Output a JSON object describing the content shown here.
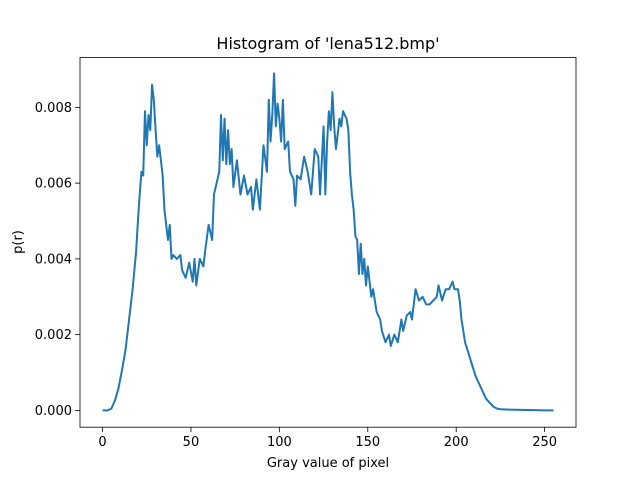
{
  "chart_data": {
    "type": "line",
    "title": "Histogram of 'lena512.bmp'",
    "x_label": "Gray value of pixel",
    "y_label": "p(r)",
    "color": "#1f77b4",
    "x": [
      0,
      3,
      5,
      7,
      9,
      11,
      13,
      15,
      17,
      19,
      20,
      21,
      22,
      23,
      24,
      25,
      26,
      27,
      28,
      29,
      30,
      31,
      32,
      33,
      34,
      35,
      36,
      37,
      38,
      39,
      40,
      42,
      44,
      45,
      47,
      49,
      51,
      52,
      53,
      55,
      57,
      58,
      60,
      62,
      63,
      65,
      66,
      67,
      68,
      69,
      70,
      71,
      72,
      73,
      74,
      76,
      78,
      80,
      82,
      84,
      85,
      87,
      89,
      91,
      93,
      94,
      95,
      96,
      97,
      98,
      99,
      100,
      101,
      102,
      103,
      105,
      106,
      108,
      109,
      110,
      112,
      114,
      116,
      118,
      120,
      122,
      123,
      125,
      126,
      127,
      128,
      129,
      130,
      131,
      132,
      134,
      135,
      136,
      138,
      139,
      140,
      141,
      142,
      143,
      144,
      145,
      146,
      147,
      148,
      149,
      150,
      152,
      153,
      155,
      157,
      158,
      160,
      162,
      163,
      165,
      167,
      169,
      170,
      172,
      174,
      175,
      177,
      179,
      181,
      183,
      185,
      187,
      189,
      190,
      192,
      194,
      196,
      198,
      199,
      201,
      202,
      203,
      205,
      207,
      209,
      211,
      213,
      215,
      217,
      219,
      221,
      223,
      225,
      230,
      240,
      250,
      255
    ],
    "values": [
      0,
      0,
      5e-05,
      0.00026,
      0.00058,
      0.00106,
      0.0016,
      0.0024,
      0.0032,
      0.0042,
      0.005,
      0.0057,
      0.0063,
      0.0062,
      0.0079,
      0.007,
      0.0078,
      0.0074,
      0.0086,
      0.0082,
      0.0074,
      0.0067,
      0.007,
      0.0066,
      0.0062,
      0.0053,
      0.0049,
      0.0045,
      0.0049,
      0.004,
      0.0041,
      0.004,
      0.0041,
      0.0037,
      0.0035,
      0.0039,
      0.0034,
      0.004,
      0.0033,
      0.004,
      0.0038,
      0.0042,
      0.0049,
      0.0045,
      0.0057,
      0.0061,
      0.0063,
      0.0078,
      0.0066,
      0.0077,
      0.0065,
      0.0074,
      0.0065,
      0.0069,
      0.0059,
      0.0066,
      0.0057,
      0.0062,
      0.0057,
      0.0059,
      0.0053,
      0.0061,
      0.0053,
      0.007,
      0.0063,
      0.0082,
      0.0071,
      0.0078,
      0.0089,
      0.0075,
      0.0081,
      0.0077,
      0.0071,
      0.0082,
      0.0069,
      0.0071,
      0.0063,
      0.0061,
      0.0054,
      0.0062,
      0.0061,
      0.0067,
      0.0063,
      0.0057,
      0.0069,
      0.0067,
      0.0057,
      0.0075,
      0.0057,
      0.0071,
      0.0079,
      0.0074,
      0.0084,
      0.0075,
      0.0069,
      0.0077,
      0.0075,
      0.0079,
      0.0077,
      0.0074,
      0.0063,
      0.0057,
      0.0053,
      0.0046,
      0.0045,
      0.0036,
      0.0044,
      0.0036,
      0.004,
      0.0033,
      0.0038,
      0.003,
      0.0032,
      0.0026,
      0.0024,
      0.0021,
      0.0018,
      0.002,
      0.0017,
      0.002,
      0.0018,
      0.0024,
      0.0021,
      0.0025,
      0.0026,
      0.0024,
      0.0032,
      0.0029,
      0.003,
      0.0028,
      0.0028,
      0.0029,
      0.003,
      0.0033,
      0.0029,
      0.0032,
      0.0032,
      0.0034,
      0.0032,
      0.0032,
      0.0029,
      0.0024,
      0.0018,
      0.0015,
      0.0012,
      0.0009,
      0.0007,
      0.0005,
      0.0003,
      0.0002,
      0.0001,
      5e-05,
      3e-05,
      2e-05,
      1e-05,
      0,
      0
    ],
    "xlim": [
      -12.75,
      267.75
    ],
    "ylim": [
      -0.000444,
      0.009315
    ],
    "xticks": [
      0,
      50,
      100,
      150,
      200,
      250
    ],
    "yticks": [
      {
        "value": 0,
        "label": "0.000"
      },
      {
        "value": 0.002,
        "label": "0.002"
      },
      {
        "value": 0.004,
        "label": "0.004"
      },
      {
        "value": 0.006,
        "label": "0.006"
      },
      {
        "value": 0.008,
        "label": "0.008"
      }
    ],
    "grid": false
  }
}
